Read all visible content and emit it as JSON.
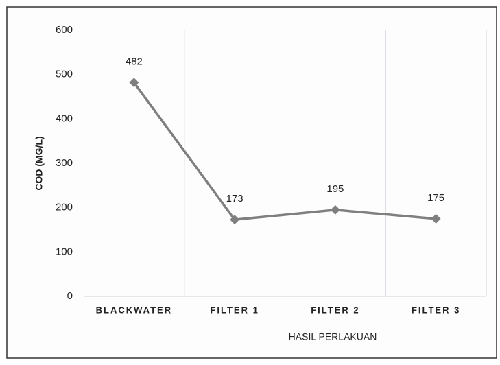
{
  "chart_data": {
    "type": "line",
    "categories": [
      "BLACKWATER",
      "FILTER 1",
      "FILTER 2",
      "FILTER 3"
    ],
    "values": [
      482,
      173,
      195,
      175
    ],
    "color": "#7f7f7f",
    "x_label": "HASIL PERLAKUAN",
    "y_label": "COD (MG/L)",
    "ylim": [
      0,
      600
    ],
    "yticks": [
      0,
      100,
      200,
      300,
      400,
      500,
      600
    ],
    "category_grid": true
  }
}
